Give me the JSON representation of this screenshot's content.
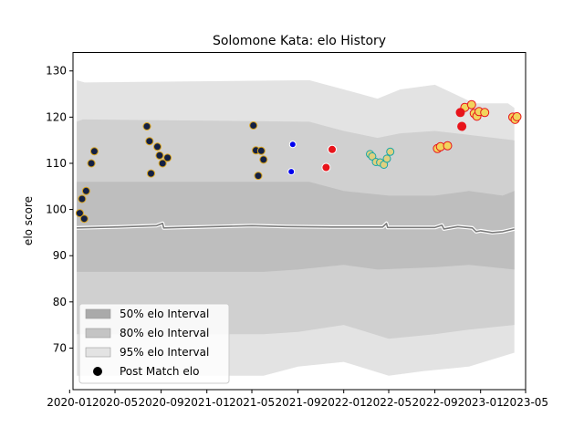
{
  "chart_data": {
    "type": "area",
    "title": "Solomone Kata: elo History",
    "ylabel": "elo score",
    "xlabel": "",
    "xlim": [
      "2020-01-10",
      "2023-05-01"
    ],
    "ylim": [
      61,
      134
    ],
    "yticks": [
      70,
      80,
      90,
      100,
      110,
      120,
      130
    ],
    "xticks": [
      {
        "date": "2020-01-01",
        "label": "2020-01"
      },
      {
        "date": "2020-05-01",
        "label": "2020-05"
      },
      {
        "date": "2020-09-01",
        "label": "2020-09"
      },
      {
        "date": "2021-01-01",
        "label": "2021-01"
      },
      {
        "date": "2021-05-01",
        "label": "2021-05"
      },
      {
        "date": "2021-09-01",
        "label": "2021-09"
      },
      {
        "date": "2022-01-01",
        "label": "2022-01"
      },
      {
        "date": "2022-05-01",
        "label": "2022-05"
      },
      {
        "date": "2022-09-01",
        "label": "2022-09"
      },
      {
        "date": "2023-01-01",
        "label": "2023-01"
      },
      {
        "date": "2023-05-01",
        "label": "2023-05"
      }
    ],
    "grid": false,
    "legend_position": "lower-left",
    "bands": [
      {
        "name": "95% elo Interval",
        "color": "#e3e3e3",
        "upper": [
          [
            "2020-01-20",
            128
          ],
          [
            "2020-02-10",
            127.5
          ],
          [
            "2021-10-01",
            128
          ],
          [
            "2022-01-01",
            126
          ],
          [
            "2022-04-01",
            124
          ],
          [
            "2022-06-01",
            126
          ],
          [
            "2022-09-01",
            127
          ],
          [
            "2022-12-15",
            123
          ],
          [
            "2023-03-15",
            123
          ],
          [
            "2023-04-01",
            122
          ]
        ],
        "lower": [
          [
            "2020-01-20",
            64
          ],
          [
            "2021-06-01",
            64
          ],
          [
            "2021-09-01",
            66
          ],
          [
            "2022-01-01",
            67
          ],
          [
            "2022-05-01",
            64
          ],
          [
            "2022-08-01",
            65
          ],
          [
            "2022-12-01",
            66
          ],
          [
            "2023-04-01",
            69
          ]
        ]
      },
      {
        "name": "80% elo Interval",
        "color": "#d0d0d0",
        "upper": [
          [
            "2020-01-20",
            119
          ],
          [
            "2020-02-05",
            119.5
          ],
          [
            "2021-10-01",
            119
          ],
          [
            "2022-01-01",
            117
          ],
          [
            "2022-04-01",
            115.5
          ],
          [
            "2022-06-01",
            116.5
          ],
          [
            "2022-09-01",
            117
          ],
          [
            "2023-04-01",
            115
          ]
        ],
        "lower": [
          [
            "2020-01-20",
            73
          ],
          [
            "2021-06-01",
            73
          ],
          [
            "2021-09-01",
            73.5
          ],
          [
            "2022-01-01",
            75
          ],
          [
            "2022-05-01",
            72
          ],
          [
            "2022-09-01",
            73
          ],
          [
            "2022-12-01",
            74
          ],
          [
            "2023-04-01",
            75
          ]
        ]
      },
      {
        "name": "50% elo Interval",
        "color": "#bebebe",
        "upper": [
          [
            "2020-01-20",
            106
          ],
          [
            "2021-10-01",
            106
          ],
          [
            "2022-01-01",
            104
          ],
          [
            "2022-05-01",
            103
          ],
          [
            "2022-09-01",
            103
          ],
          [
            "2022-12-01",
            104
          ],
          [
            "2023-03-01",
            103
          ],
          [
            "2023-04-01",
            104
          ]
        ],
        "lower": [
          [
            "2020-01-20",
            86.5
          ],
          [
            "2021-06-01",
            86.5
          ],
          [
            "2021-09-01",
            87
          ],
          [
            "2022-01-01",
            88
          ],
          [
            "2022-04-01",
            87
          ],
          [
            "2022-09-01",
            87.5
          ],
          [
            "2022-12-01",
            88
          ],
          [
            "2023-04-01",
            87
          ]
        ]
      }
    ],
    "mean_line": [
      [
        "2020-01-20",
        96
      ],
      [
        "2020-05-01",
        96.2
      ],
      [
        "2020-08-20",
        96.5
      ],
      [
        "2020-09-05",
        97
      ],
      [
        "2020-09-08",
        96
      ],
      [
        "2021-05-01",
        96.5
      ],
      [
        "2021-08-01",
        96.3
      ],
      [
        "2021-12-01",
        96.2
      ],
      [
        "2022-04-15",
        96.2
      ],
      [
        "2022-04-25",
        97
      ],
      [
        "2022-04-28",
        96.1
      ],
      [
        "2022-09-01",
        96.1
      ],
      [
        "2022-09-20",
        96.6
      ],
      [
        "2022-09-25",
        95.8
      ],
      [
        "2022-11-01",
        96.3
      ],
      [
        "2022-12-10",
        96
      ],
      [
        "2022-12-20",
        95.2
      ],
      [
        "2023-01-01",
        95.4
      ],
      [
        "2023-02-01",
        95
      ],
      [
        "2023-03-01",
        95.2
      ],
      [
        "2023-04-01",
        95.8
      ]
    ],
    "series": [
      {
        "name": "Post Match elo",
        "fill": "#132044",
        "stroke": "#d9a31c",
        "radius": 4,
        "points": [
          [
            "2020-01-28",
            99.2
          ],
          [
            "2020-02-03",
            102.3
          ],
          [
            "2020-02-09",
            98
          ],
          [
            "2020-02-14",
            104
          ],
          [
            "2020-02-28",
            110
          ],
          [
            "2020-03-07",
            112.6
          ],
          [
            "2020-07-25",
            118
          ],
          [
            "2020-08-01",
            114.8
          ],
          [
            "2020-08-05",
            107.8
          ],
          [
            "2020-08-22",
            113.6
          ],
          [
            "2020-08-28",
            111.7
          ],
          [
            "2020-09-05",
            110
          ],
          [
            "2020-09-18",
            111.2
          ],
          [
            "2021-05-05",
            118.2
          ],
          [
            "2021-05-12",
            112.8
          ],
          [
            "2021-05-18",
            107.3
          ],
          [
            "2021-05-26",
            112.7
          ],
          [
            "2021-06-01",
            110.8
          ]
        ]
      },
      {
        "name": "Post Match elo",
        "fill": "#0000ee",
        "stroke": "#ffffff",
        "radius": 3.5,
        "points": [
          [
            "2021-08-18",
            114.1
          ],
          [
            "2021-08-14",
            108.2
          ]
        ]
      },
      {
        "name": "Post Match elo",
        "fill": "#e8141b",
        "stroke": "#ffffff",
        "radius": 4.5,
        "points": [
          [
            "2021-11-15",
            109.1
          ],
          [
            "2021-12-01",
            113
          ]
        ]
      },
      {
        "name": "Post Match elo",
        "fill": "#e0d080",
        "stroke": "#17a6a6",
        "radius": 4,
        "points": [
          [
            "2022-03-12",
            112
          ],
          [
            "2022-03-18",
            111.5
          ],
          [
            "2022-03-28",
            110.3
          ],
          [
            "2022-04-08",
            110.2
          ],
          [
            "2022-04-18",
            109.7
          ],
          [
            "2022-04-26",
            111
          ],
          [
            "2022-05-05",
            112.5
          ]
        ]
      },
      {
        "name": "Post Match elo",
        "fill": "#f2d45c",
        "stroke": "#e8141b",
        "radius": 4.5,
        "points": [
          [
            "2022-09-08",
            113.2
          ],
          [
            "2022-09-16",
            113.6
          ],
          [
            "2022-10-05",
            113.8
          ],
          [
            "2022-11-20",
            122.1
          ],
          [
            "2022-12-08",
            122.7
          ],
          [
            "2022-12-15",
            120.8
          ],
          [
            "2022-12-22",
            120.2
          ],
          [
            "2022-12-28",
            121.2
          ],
          [
            "2023-01-12",
            121
          ],
          [
            "2023-03-28",
            120
          ],
          [
            "2023-04-03",
            119.5
          ],
          [
            "2023-04-08",
            120.1
          ]
        ]
      },
      {
        "name": "Post Match elo",
        "fill": "#e8141b",
        "stroke": "#e8141b",
        "radius": 4.5,
        "points": [
          [
            "2022-11-08",
            121
          ],
          [
            "2022-11-12",
            118
          ]
        ]
      }
    ],
    "legend": [
      {
        "label": "50% elo Interval",
        "swatch": "patch",
        "color": "#aaaaaa"
      },
      {
        "label": "80% elo Interval",
        "swatch": "patch",
        "color": "#c4c4c4"
      },
      {
        "label": "95% elo Interval",
        "swatch": "patch",
        "color": "#e3e3e3"
      },
      {
        "label": "Post Match elo",
        "swatch": "dot",
        "color": "#000000"
      }
    ]
  }
}
